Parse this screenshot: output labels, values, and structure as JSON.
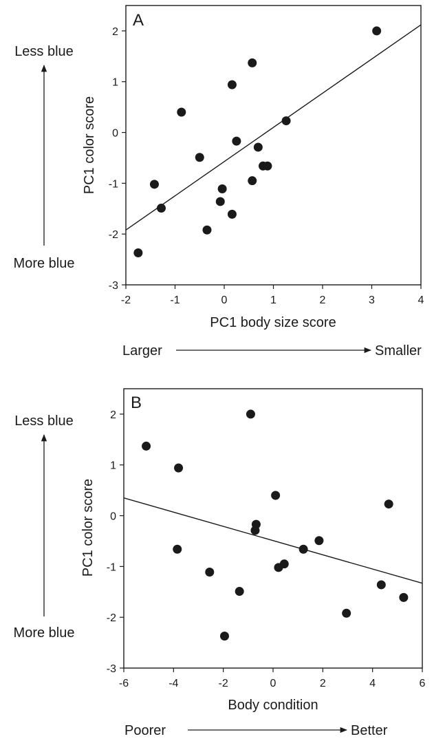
{
  "chart_data": [
    {
      "type": "scatter",
      "panel_label": "A",
      "xlabel": "PC1 body size score",
      "ylabel": "PC1 color score",
      "xlim": [
        -2,
        4
      ],
      "ylim": [
        -3,
        2.5
      ],
      "x_ticks": [
        -2,
        -1,
        0,
        1,
        2,
        3,
        4
      ],
      "y_ticks": [
        -3,
        -2,
        -1,
        0,
        1,
        2
      ],
      "y_direction": {
        "top": "Less blue",
        "bottom": "More blue"
      },
      "x_direction": {
        "left": "Larger",
        "right": "Smaller"
      },
      "trendline": {
        "x": [
          -2,
          4
        ],
        "y": [
          -1.92,
          2.12
        ]
      },
      "points": [
        {
          "x": -1.75,
          "y": -2.37
        },
        {
          "x": -1.42,
          "y": -1.02
        },
        {
          "x": -1.28,
          "y": -1.49
        },
        {
          "x": -0.87,
          "y": 0.4
        },
        {
          "x": -0.5,
          "y": -0.49
        },
        {
          "x": -0.35,
          "y": -1.92
        },
        {
          "x": -0.08,
          "y": -1.36
        },
        {
          "x": -0.04,
          "y": -1.11
        },
        {
          "x": 0.16,
          "y": -1.61
        },
        {
          "x": 0.16,
          "y": 0.94
        },
        {
          "x": 0.25,
          "y": -0.17
        },
        {
          "x": 0.57,
          "y": 1.37
        },
        {
          "x": 0.57,
          "y": -0.95
        },
        {
          "x": 0.69,
          "y": -0.29
        },
        {
          "x": 0.79,
          "y": -0.66
        },
        {
          "x": 0.88,
          "y": -0.66
        },
        {
          "x": 1.26,
          "y": 0.23
        },
        {
          "x": 3.1,
          "y": 2.0
        }
      ]
    },
    {
      "type": "scatter",
      "panel_label": "B",
      "xlabel": "Body condition",
      "ylabel": "PC1 color score",
      "xlim": [
        -6,
        6
      ],
      "ylim": [
        -3,
        2.5
      ],
      "x_ticks": [
        -6,
        -4,
        -2,
        0,
        2,
        4,
        6
      ],
      "y_ticks": [
        -3,
        -2,
        -1,
        0,
        1,
        2
      ],
      "y_direction": {
        "top": "Less blue",
        "bottom": "More blue"
      },
      "x_direction": {
        "left": "Poorer",
        "right": "Better"
      },
      "trendline": {
        "x": [
          -6,
          6
        ],
        "y": [
          0.35,
          -1.33
        ]
      },
      "points": [
        {
          "x": -5.1,
          "y": 1.37
        },
        {
          "x": -3.8,
          "y": 0.94
        },
        {
          "x": -3.85,
          "y": -0.66
        },
        {
          "x": -2.55,
          "y": -1.11
        },
        {
          "x": -1.95,
          "y": -2.37
        },
        {
          "x": -1.35,
          "y": -1.49
        },
        {
          "x": -0.9,
          "y": 2.0
        },
        {
          "x": -0.68,
          "y": -0.17
        },
        {
          "x": -0.72,
          "y": -0.29
        },
        {
          "x": 0.1,
          "y": 0.4
        },
        {
          "x": 0.22,
          "y": -1.02
        },
        {
          "x": 0.45,
          "y": -0.95
        },
        {
          "x": 1.22,
          "y": -0.66
        },
        {
          "x": 1.85,
          "y": -0.49
        },
        {
          "x": 2.95,
          "y": -1.92
        },
        {
          "x": 4.35,
          "y": -1.36
        },
        {
          "x": 4.65,
          "y": 0.23
        },
        {
          "x": 5.25,
          "y": -1.61
        }
      ]
    }
  ]
}
